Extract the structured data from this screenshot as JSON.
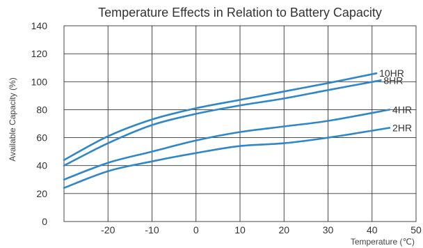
{
  "chart_data": {
    "type": "line",
    "title": "Temperature Effects in Relation to Battery Capacity",
    "xlabel": "Temperature (℃)",
    "ylabel": "Available Capacity (%)",
    "xlim": [
      -30,
      50
    ],
    "ylim": [
      0,
      140
    ],
    "x_ticks": [
      -20,
      -10,
      0,
      10,
      20,
      30,
      40,
      50
    ],
    "y_ticks": [
      0,
      20,
      40,
      60,
      80,
      100,
      120,
      140
    ],
    "grid": true,
    "series": [
      {
        "name": "10HR",
        "x": [
          -30,
          -20,
          -10,
          0,
          10,
          20,
          30,
          41
        ],
        "y": [
          44,
          61,
          73,
          81,
          87,
          93,
          99,
          106
        ]
      },
      {
        "name": "8HR",
        "x": [
          -30,
          -20,
          -10,
          0,
          10,
          20,
          30,
          42
        ],
        "y": [
          40,
          56,
          69,
          77,
          83,
          88,
          94,
          101
        ]
      },
      {
        "name": "4HR",
        "x": [
          -30,
          -20,
          -10,
          0,
          10,
          20,
          30,
          44
        ],
        "y": [
          30,
          42,
          50,
          58,
          64,
          68,
          72,
          80
        ]
      },
      {
        "name": "2HR",
        "x": [
          -30,
          -20,
          -10,
          0,
          10,
          20,
          30,
          44
        ],
        "y": [
          24,
          36,
          43,
          49,
          54,
          56,
          60,
          67
        ]
      }
    ],
    "line_color": "#2f86c8"
  }
}
